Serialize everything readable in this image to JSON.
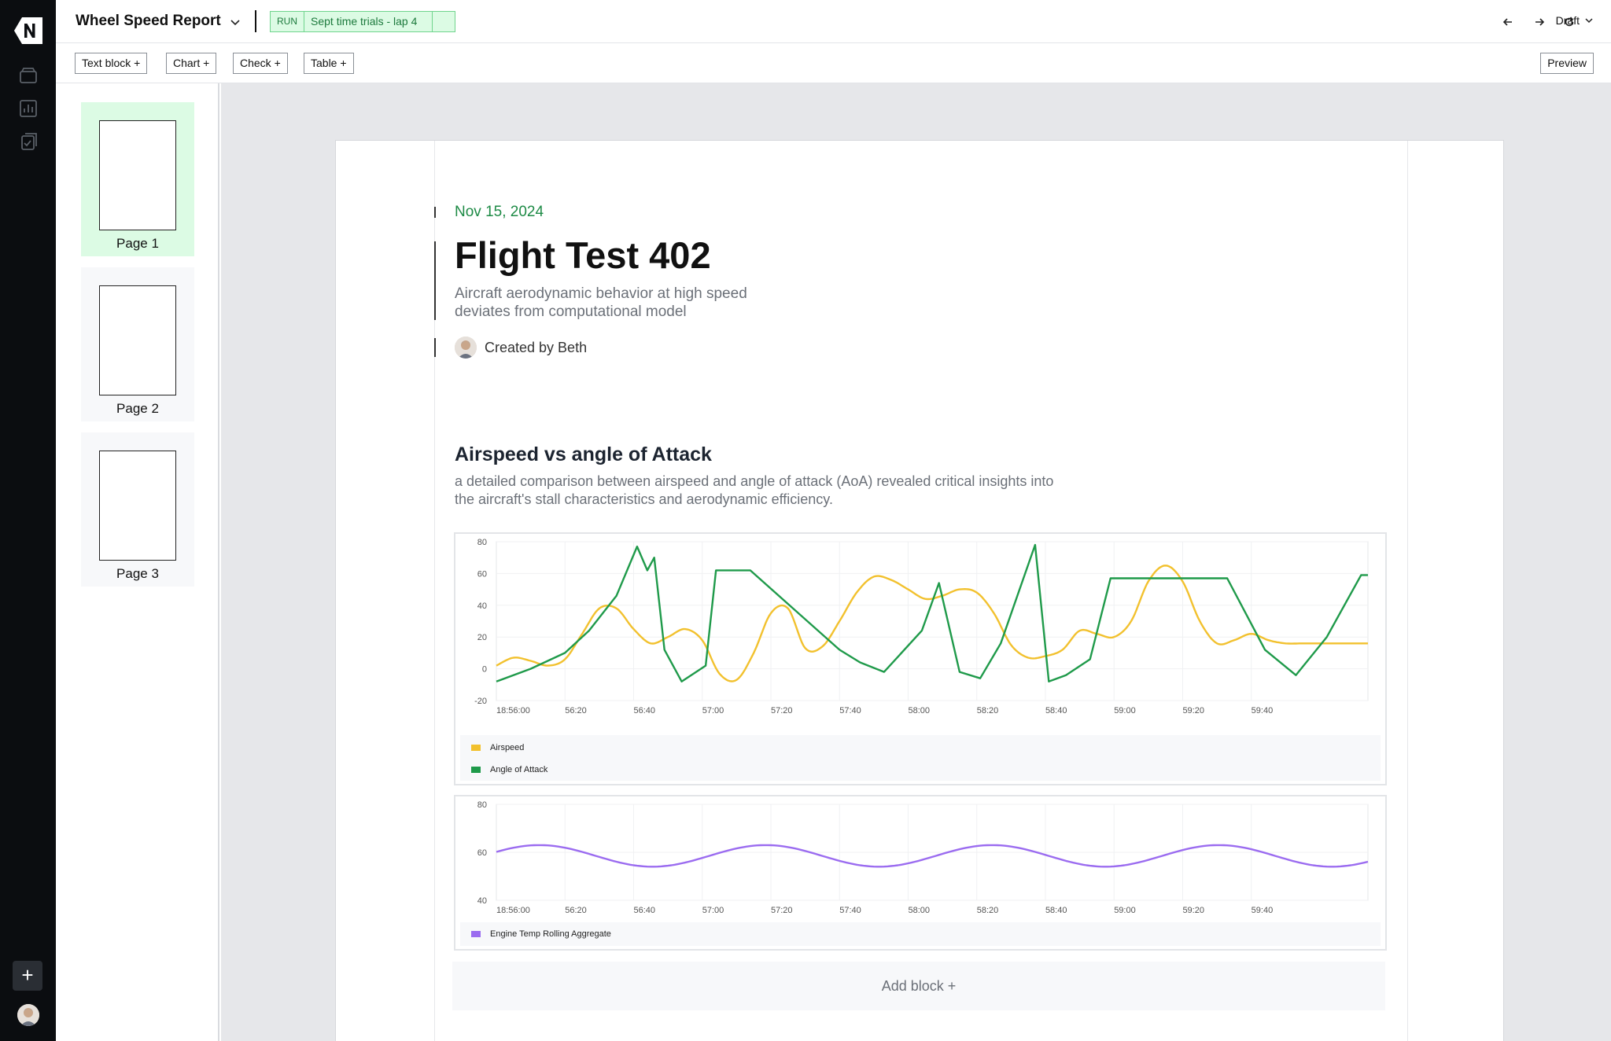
{
  "app": {
    "doc_title": "Wheel Speed Report",
    "run_label": "RUN",
    "run_name": "Sept time trials - lap 4",
    "status": "Draft"
  },
  "toolbar": {
    "text_block": "Text block +",
    "chart": "Chart +",
    "check": "Check +",
    "table": "Table +",
    "preview": "Preview"
  },
  "pages": [
    {
      "label": "Page 1",
      "active": true
    },
    {
      "label": "Page 2",
      "active": false
    },
    {
      "label": "Page 3",
      "active": false
    }
  ],
  "report": {
    "date": "Nov 15, 2024",
    "title": "Flight Test 402",
    "subtitle": "Aircraft aerodynamic behavior at high speed deviates from computational model",
    "author": "Created by Beth",
    "section_title": "Airspeed vs angle of Attack",
    "section_desc": "a detailed comparison between airspeed and angle of attack (AoA) revealed critical insights into the aircraft's stall characteristics and aerodynamic efficiency.",
    "add_block": "Add block +"
  },
  "colors": {
    "airspeed": "#f2c12e",
    "aoa": "#1f9a4a",
    "engine": "#9b6cf0",
    "accent_green": "#1d8a45"
  },
  "chart_data": [
    {
      "type": "line",
      "x_ticks": [
        "18:56:00",
        "56:20",
        "56:40",
        "57:00",
        "57:20",
        "57:40",
        "58:00",
        "58:20",
        "58:40",
        "59:00",
        "59:20",
        "59:40"
      ],
      "x_range_sec": [
        0,
        254
      ],
      "y_ticks": [
        80,
        60,
        40,
        20,
        0,
        -20
      ],
      "ylim": [
        -20,
        80
      ],
      "legend_position": "bottom",
      "series": [
        {
          "name": "Airspeed",
          "color": "#f2c12e",
          "x": [
            0,
            5,
            10,
            15,
            20,
            25,
            30,
            35,
            40,
            45,
            50,
            55,
            60,
            65,
            70,
            75,
            80,
            85,
            90,
            95,
            100,
            105,
            110,
            115,
            120,
            125,
            130,
            135,
            140,
            145,
            150,
            155,
            160,
            165,
            170,
            175,
            180,
            185,
            190,
            195,
            200,
            205,
            210,
            215,
            220,
            225,
            230,
            235,
            240,
            245,
            250,
            254
          ],
          "y": [
            2,
            7,
            5,
            2,
            6,
            22,
            38,
            38,
            25,
            16,
            20,
            25,
            18,
            -3,
            -7,
            10,
            35,
            38,
            13,
            14,
            30,
            48,
            58,
            56,
            50,
            44,
            46,
            50,
            48,
            35,
            15,
            7,
            8,
            12,
            24,
            22,
            20,
            30,
            55,
            65,
            55,
            30,
            16,
            18,
            22,
            18,
            16,
            16,
            16,
            16,
            16,
            16
          ]
        },
        {
          "name": "Angle of Attack",
          "color": "#1f9a4a",
          "x": [
            0,
            10,
            20,
            27,
            35,
            41,
            44,
            46,
            49,
            54,
            61,
            64,
            74,
            100,
            106,
            113,
            124,
            129,
            135,
            141,
            147,
            157,
            161,
            166,
            173,
            179,
            187,
            197,
            213,
            224,
            233,
            242,
            252,
            254
          ],
          "y": [
            -8,
            0,
            10,
            24,
            46,
            77,
            62,
            70,
            12,
            -8,
            2,
            62,
            62,
            12,
            4,
            -2,
            24,
            54,
            -2,
            -6,
            16,
            78,
            -8,
            -4,
            6,
            57,
            57,
            57,
            57,
            12,
            -4,
            20,
            59,
            59
          ]
        }
      ]
    },
    {
      "type": "line",
      "x_ticks": [
        "18:56:00",
        "56:20",
        "56:40",
        "57:00",
        "57:20",
        "57:40",
        "58:00",
        "58:20",
        "58:40",
        "59:00",
        "59:20",
        "59:40"
      ],
      "x_range_sec": [
        0,
        254
      ],
      "y_ticks": [
        80,
        60,
        40
      ],
      "ylim": [
        40,
        80
      ],
      "legend_position": "bottom",
      "series": [
        {
          "name": "Engine Temp Rolling Aggregate",
          "color": "#9b6cf0",
          "period_sec": 66,
          "mean": 58.5,
          "amplitude": 4.5
        }
      ]
    }
  ]
}
